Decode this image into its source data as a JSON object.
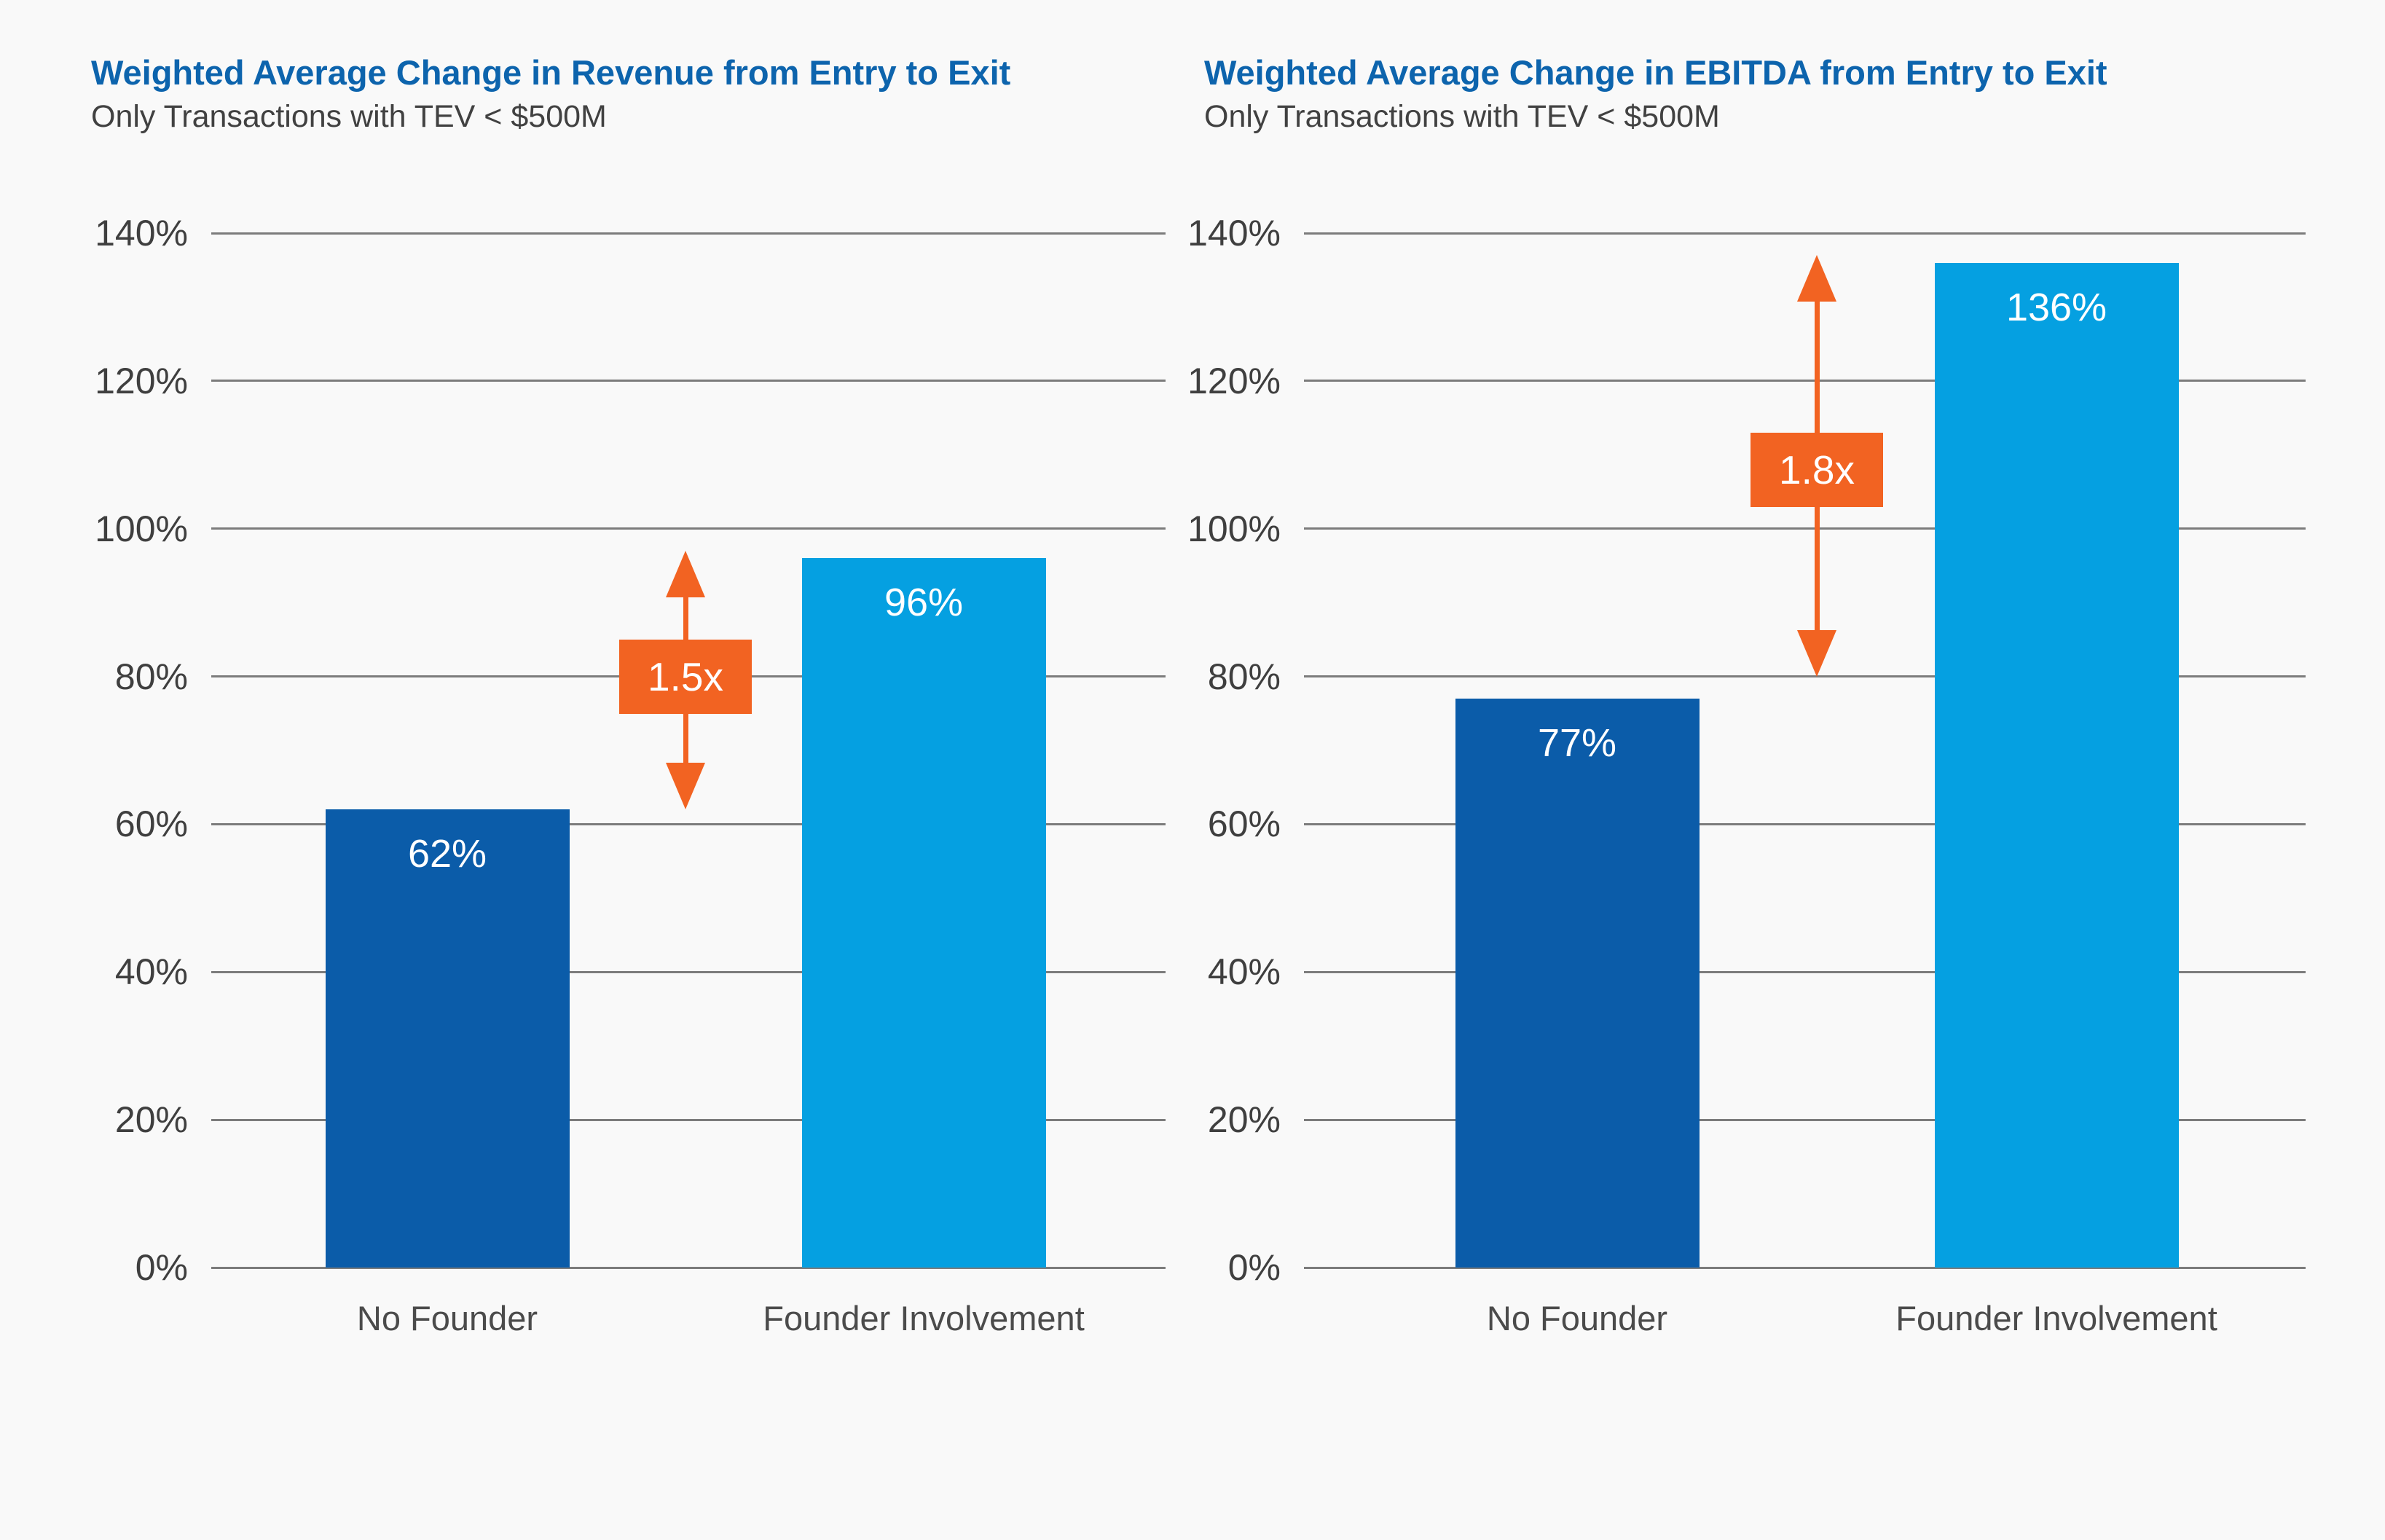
{
  "page": {
    "background": "#F9F9F9"
  },
  "colors": {
    "title_blue": "#0D64AD",
    "bar_dark_blue": "#0B5CA9",
    "bar_light_blue": "#05A0E1",
    "annotation_orange": "#F26322",
    "grid_line": "#7C7C7C",
    "axis_text": "#3F3F3F",
    "subtitle_text": "#414141",
    "category_text": "#4B4B4B",
    "bar_value_text": "#FFFFFF"
  },
  "chart_data": [
    {
      "type": "bar",
      "title": "Weighted Average Change in Revenue from Entry to Exit",
      "subtitle": "Only Transactions with TEV < $500M",
      "categories": [
        "No Founder",
        "Founder Involvement"
      ],
      "values": [
        62,
        96
      ],
      "value_labels": [
        "62%",
        "96%"
      ],
      "series_colors": [
        "bar_dark_blue",
        "bar_light_blue"
      ],
      "y_ticks": [
        "0%",
        "20%",
        "40%",
        "60%",
        "80%",
        "100%",
        "120%",
        "140%"
      ],
      "ylim": [
        0,
        140
      ],
      "grid": true,
      "legend": false,
      "annotation": {
        "label": "1.5x",
        "arrow_top_pct": 97,
        "arrow_bottom_pct": 62,
        "box_center_pct": 80
      }
    },
    {
      "type": "bar",
      "title": "Weighted Average Change in EBITDA from Entry to Exit",
      "subtitle": "Only Transactions with TEV < $500M",
      "categories": [
        "No Founder",
        "Founder Involvement"
      ],
      "values": [
        77,
        136
      ],
      "value_labels": [
        "77%",
        "136%"
      ],
      "series_colors": [
        "bar_dark_blue",
        "bar_light_blue"
      ],
      "y_ticks": [
        "0%",
        "20%",
        "40%",
        "60%",
        "80%",
        "100%",
        "120%",
        "140%"
      ],
      "ylim": [
        0,
        140
      ],
      "grid": true,
      "legend": false,
      "annotation": {
        "label": "1.8x",
        "arrow_top_pct": 137,
        "arrow_bottom_pct": 80,
        "box_center_pct": 108
      }
    }
  ]
}
